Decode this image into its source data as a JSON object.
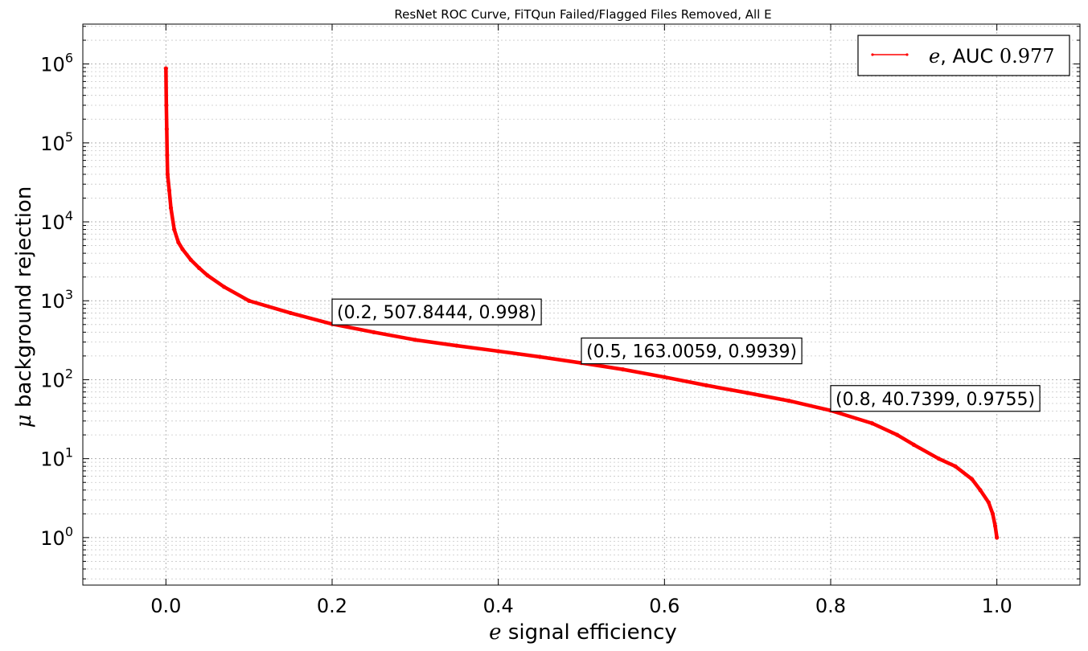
{
  "chart_data": {
    "type": "line",
    "title": "ResNet ROC Curve, FiTQun Failed/Flagged Files Removed, All E",
    "xlabel_symbol": "e",
    "xlabel_text": " signal efficiency",
    "ylabel_symbol": "μ",
    "ylabel_text": " background rejection",
    "y_scale": "log",
    "xlim": [
      -0.1,
      1.1
    ],
    "ylim": [
      0.25,
      3200000
    ],
    "x_ticks": [
      0.0,
      0.2,
      0.4,
      0.6,
      0.8,
      1.0
    ],
    "x_tick_labels": [
      "0.0",
      "0.2",
      "0.4",
      "0.6",
      "0.8",
      "1.0"
    ],
    "y_tick_exponents": [
      0,
      1,
      2,
      3,
      4,
      5,
      6
    ],
    "y_tick_base": "10",
    "grid": true,
    "legend": {
      "location": "top-right",
      "entries": [
        {
          "symbol": "e",
          "text": ", AUC ",
          "auc": "0.977",
          "color": "#ff0000"
        }
      ]
    },
    "series": [
      {
        "name": "e, AUC 0.977",
        "color": "#ff0000",
        "points": [
          [
            0.0,
            880000
          ],
          [
            0.0005,
            300000
          ],
          [
            0.001,
            150000
          ],
          [
            0.0015,
            70000
          ],
          [
            0.002,
            40000
          ],
          [
            0.004,
            25000
          ],
          [
            0.006,
            15000
          ],
          [
            0.01,
            8000
          ],
          [
            0.015,
            5500
          ],
          [
            0.02,
            4500
          ],
          [
            0.03,
            3300
          ],
          [
            0.04,
            2600
          ],
          [
            0.05,
            2100
          ],
          [
            0.07,
            1500
          ],
          [
            0.1,
            1000
          ],
          [
            0.15,
            700
          ],
          [
            0.2,
            507.8444
          ],
          [
            0.25,
            400
          ],
          [
            0.3,
            320
          ],
          [
            0.35,
            270
          ],
          [
            0.4,
            230
          ],
          [
            0.45,
            195
          ],
          [
            0.5,
            163.0059
          ],
          [
            0.55,
            135
          ],
          [
            0.6,
            108
          ],
          [
            0.65,
            85
          ],
          [
            0.7,
            68
          ],
          [
            0.75,
            54
          ],
          [
            0.8,
            40.7399
          ],
          [
            0.85,
            28
          ],
          [
            0.88,
            20
          ],
          [
            0.9,
            15
          ],
          [
            0.93,
            10
          ],
          [
            0.95,
            8
          ],
          [
            0.97,
            5.5
          ],
          [
            0.98,
            4
          ],
          [
            0.99,
            2.8
          ],
          [
            0.995,
            2.0
          ],
          [
            0.998,
            1.4
          ],
          [
            1.0,
            1.0
          ]
        ]
      }
    ],
    "annotations": [
      {
        "x": 0.2,
        "y": 507.8444,
        "text": "(0.2, 507.8444, 0.998)"
      },
      {
        "x": 0.5,
        "y": 163.0059,
        "text": "(0.5, 163.0059, 0.9939)"
      },
      {
        "x": 0.8,
        "y": 40.7399,
        "text": "(0.8, 40.7399, 0.9755)"
      }
    ]
  }
}
